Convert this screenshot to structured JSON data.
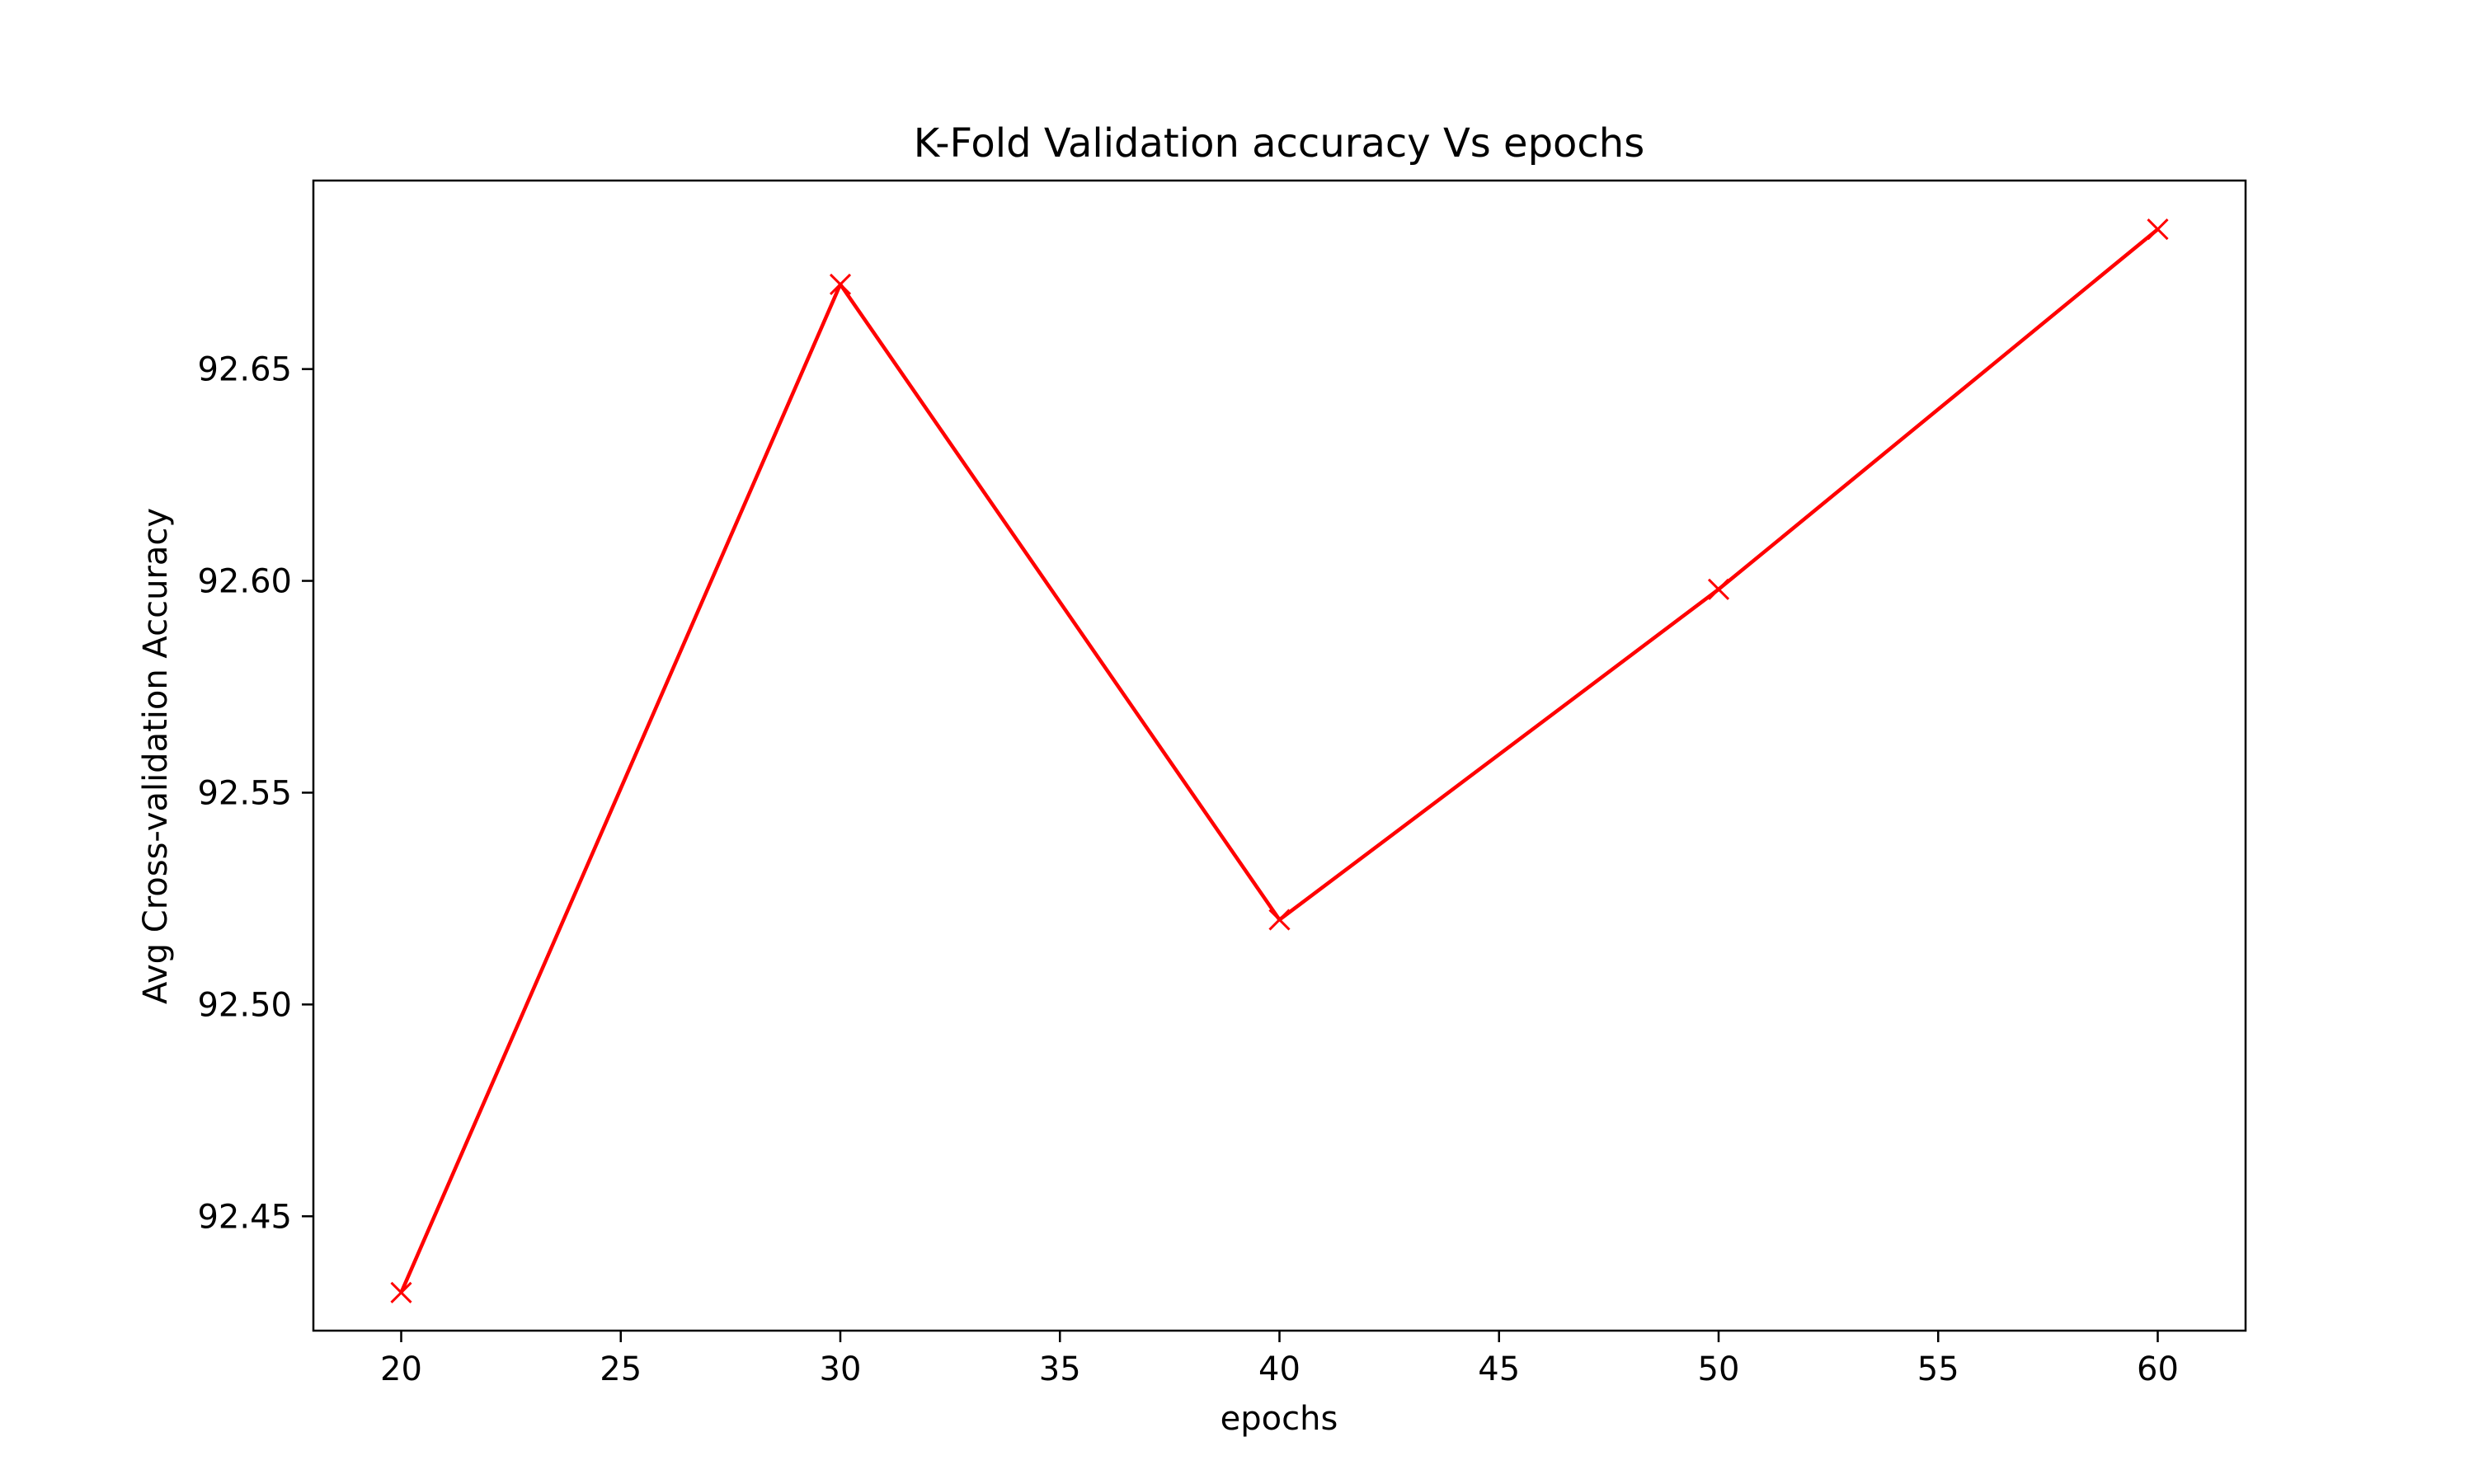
{
  "chart_data": {
    "type": "line",
    "title": "K-Fold Validation accuracy Vs epochs",
    "xlabel": "epochs",
    "ylabel": "Avg Cross-validation Accuracy",
    "x": [
      20,
      30,
      40,
      50,
      60
    ],
    "series": [
      {
        "values": [
          92.432,
          92.67,
          92.52,
          92.598,
          92.683
        ],
        "color": "#ff0000",
        "marker": "x"
      }
    ],
    "xlim": [
      18,
      62
    ],
    "ylim": [
      92.423,
      92.6945
    ],
    "xticks": [
      20,
      25,
      30,
      35,
      40,
      45,
      50,
      55,
      60
    ],
    "xtick_labels": [
      "20",
      "25",
      "30",
      "35",
      "40",
      "45",
      "50",
      "55",
      "60"
    ],
    "yticks": [
      92.45,
      92.5,
      92.55,
      92.6,
      92.65
    ],
    "ytick_labels": [
      "92.45",
      "92.50",
      "92.55",
      "92.60",
      "92.65"
    ],
    "grid": false,
    "legend": "none"
  }
}
